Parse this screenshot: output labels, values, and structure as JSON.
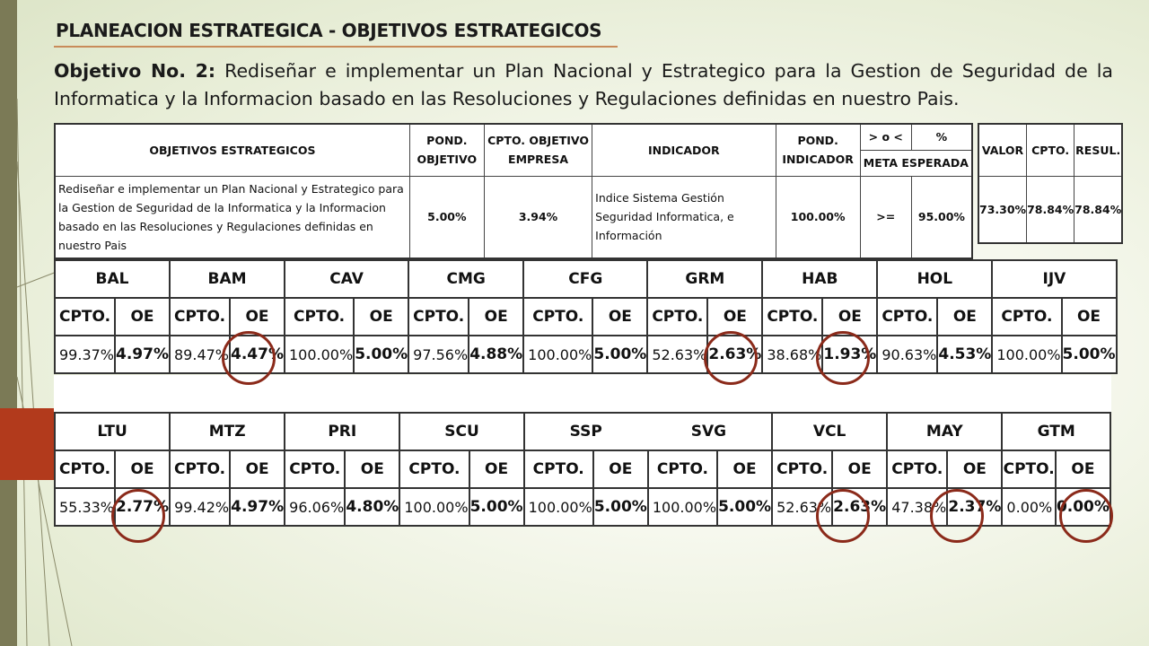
{
  "title": "PLANEACION ESTRATEGICA - OBJETIVOS ESTRATEGICOS",
  "objective": {
    "label": "Objetivo No. 2:",
    "text": "Rediseñar e implementar un Plan Nacional y Estrategico para la Gestion de Seguridad de la Informatica y la Informacion basado en las Resoluciones y Regulaciones definidas en nuestro Pais."
  },
  "summary_table": {
    "headers": {
      "objetivos": "OBJETIVOS ESTRATEGICOS",
      "pond_objetivo_1": "POND.",
      "pond_objetivo_2": "OBJETIVO",
      "cpto_1": "CPTO. OBJETIVO",
      "cpto_2": "EMPRESA",
      "indicador": "INDICADOR",
      "pond_ind_1": "POND.",
      "pond_ind_2": "INDICADOR",
      "op": "> o <",
      "pct": "%",
      "meta": "META ESPERADA"
    },
    "row": {
      "descripcion": "Rediseñar e implementar un Plan Nacional y Estrategico para la Gestion de Seguridad de la Informatica y la Informacion basado en las Resoluciones y Regulaciones definidas en nuestro Pais",
      "pond_objetivo": "5.00%",
      "cpto_empresa": "3.94%",
      "indicador": "Indice Sistema Gestión Seguridad Informatica, e Información",
      "pond_indicador": "100.00%",
      "operador": ">=",
      "meta": "95.00%"
    }
  },
  "results_table": {
    "headers": {
      "valor": "VALOR",
      "cpto": "CPTO.",
      "resul": "RESUL."
    },
    "row": {
      "valor": "73.30%",
      "cpto": "78.84%",
      "resul": "78.84%"
    }
  },
  "labels": {
    "cpto": "CPTO.",
    "oe": "OE"
  },
  "units_top": [
    {
      "name": "BAL",
      "cpto": "99.37%",
      "oe": "4.97%"
    },
    {
      "name": "BAM",
      "cpto": "89.47%",
      "oe": "4.47%"
    },
    {
      "name": "CAV",
      "cpto": "100.00%",
      "oe": "5.00%"
    },
    {
      "name": "CMG",
      "cpto": "97.56%",
      "oe": "4.88%"
    },
    {
      "name": "CFG",
      "cpto": "100.00%",
      "oe": "5.00%"
    },
    {
      "name": "GRM",
      "cpto": "52.63%",
      "oe": "2.63%"
    },
    {
      "name": "HAB",
      "cpto": "38.68%",
      "oe": "1.93%"
    },
    {
      "name": "HOL",
      "cpto": "90.63%",
      "oe": "4.53%"
    },
    {
      "name": "IJV",
      "cpto": "100.00%",
      "oe": "5.00%"
    }
  ],
  "units_bottom": [
    {
      "name": "LTU",
      "cpto": "55.33%",
      "oe": "2.77%"
    },
    {
      "name": "MTZ",
      "cpto": "99.42%",
      "oe": "4.97%"
    },
    {
      "name": "PRI",
      "cpto": "96.06%",
      "oe": "4.80%"
    },
    {
      "name": "SCU",
      "cpto": "100.00%",
      "oe": "5.00%"
    },
    {
      "name": "SSP",
      "cpto": "100.00%",
      "oe": "5.00%"
    },
    {
      "name": "SVG",
      "cpto": "100.00%",
      "oe": "5.00%"
    },
    {
      "name": "VCL",
      "cpto": "52.63%",
      "oe": "2.63%"
    },
    {
      "name": "MAY",
      "cpto": "47.38%",
      "oe": "2.37%"
    },
    {
      "name": "GTM",
      "cpto": "0.00%",
      "oe": "0.00%"
    }
  ],
  "highlight_color": "#8b2a1a"
}
